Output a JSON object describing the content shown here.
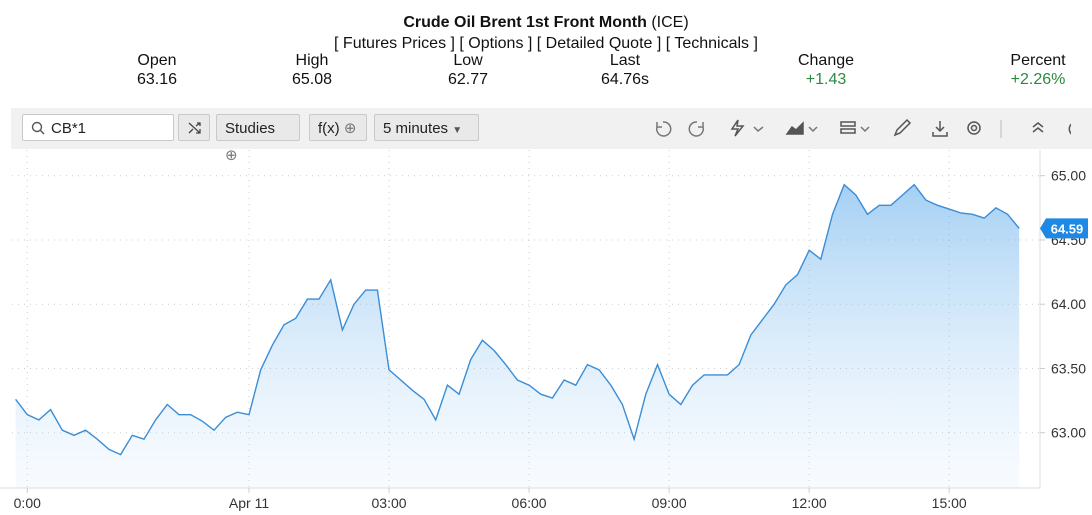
{
  "header": {
    "title": "Crude Oil Brent 1st Front Month",
    "exchange": "(ICE)",
    "links": [
      "[ Futures Prices ]",
      "[ Options ]",
      "[ Detailed Quote ]",
      "[ Technicals ]"
    ],
    "quote": [
      {
        "label": "Open",
        "value": "63.16"
      },
      {
        "label": "High",
        "value": "65.08"
      },
      {
        "label": "Low",
        "value": "62.77"
      },
      {
        "label": "Last",
        "value": "64.76s"
      },
      {
        "label": "Change",
        "value": "+1.43"
      },
      {
        "label": "Percent",
        "value": "+2.26%"
      }
    ]
  },
  "toolbar": {
    "symbol": "CB*1",
    "studies": "Studies",
    "fx": "f(x)",
    "interval": "5 minutes"
  },
  "chart_data": {
    "type": "line",
    "color": "#3a8dd6",
    "categories": [
      null,
      "0:00",
      null,
      null,
      null,
      null,
      null,
      null,
      null,
      null,
      null,
      null,
      null,
      null,
      null,
      null,
      null,
      null,
      null,
      null,
      "Apr 11",
      null,
      null,
      null,
      null,
      null,
      null,
      null,
      null,
      null,
      null,
      null,
      "03:00",
      null,
      null,
      null,
      null,
      null,
      null,
      null,
      null,
      null,
      null,
      null,
      "06:00",
      null,
      null,
      null,
      null,
      null,
      null,
      null,
      null,
      null,
      null,
      null,
      "09:00",
      null,
      null,
      null,
      null,
      null,
      null,
      null,
      null,
      null,
      null,
      null,
      "12:00",
      null,
      null,
      null,
      null,
      null,
      null,
      null,
      null,
      null,
      null,
      null,
      "15:00",
      null,
      null,
      null,
      null,
      null,
      null
    ],
    "values": [
      63.26,
      63.14,
      63.1,
      63.18,
      63.02,
      62.98,
      63.02,
      62.95,
      62.87,
      62.83,
      62.98,
      62.95,
      63.1,
      63.22,
      63.14,
      63.14,
      63.09,
      63.02,
      63.12,
      63.16,
      63.14,
      63.49,
      63.68,
      63.84,
      63.89,
      64.04,
      64.04,
      64.19,
      63.8,
      64.0,
      64.11,
      64.11,
      63.49,
      63.41,
      63.33,
      63.26,
      63.1,
      63.37,
      63.3,
      63.57,
      63.72,
      63.64,
      63.53,
      63.41,
      63.37,
      63.3,
      63.27,
      63.41,
      63.37,
      63.53,
      63.49,
      63.37,
      63.22,
      62.95,
      63.3,
      63.53,
      63.3,
      63.22,
      63.37,
      63.45,
      63.45,
      63.45,
      63.53,
      63.76,
      63.88,
      64.0,
      64.15,
      64.23,
      64.42,
      64.35,
      64.7,
      64.93,
      64.85,
      64.7,
      64.77,
      64.77,
      64.85,
      64.93,
      64.81,
      64.77,
      64.74,
      64.71,
      64.7,
      64.67,
      64.75,
      64.7,
      64.59
    ],
    "ylim": [
      62.57,
      65.2
    ],
    "yticks": [
      {
        "value": 63,
        "label": "63.00"
      },
      {
        "value": 63.5,
        "label": "63.50"
      },
      {
        "value": 64,
        "label": "64.00"
      },
      {
        "value": 64.5,
        "label": "64.50"
      },
      {
        "value": 65,
        "label": "65.00"
      }
    ],
    "grid": true
  }
}
